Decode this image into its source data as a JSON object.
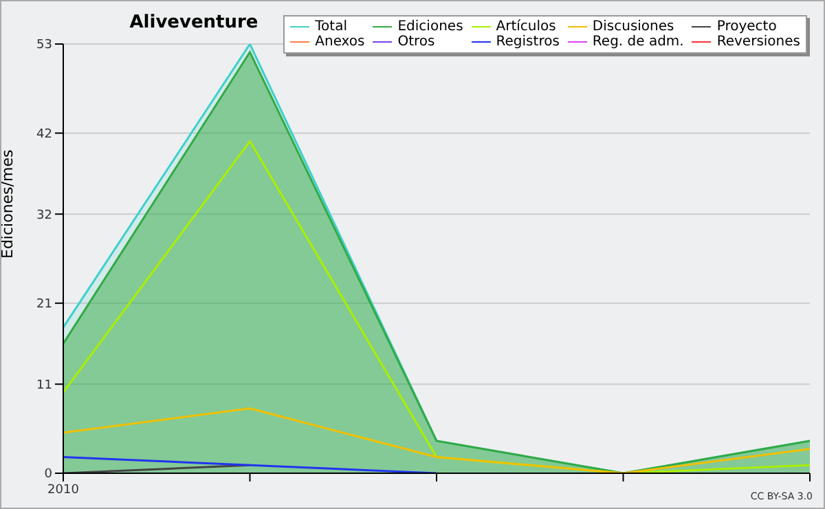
{
  "chart_data": {
    "type": "line",
    "title": "Aliveventure",
    "ylabel": "Ediciones/mes",
    "categories": [
      "2010",
      null,
      null,
      null,
      null
    ],
    "ylim": [
      0,
      53
    ],
    "yticks": [
      0,
      11,
      21,
      32,
      42,
      53
    ],
    "grid": "y",
    "legend": "top right",
    "annotations": [
      "CC BY-SA 3.0"
    ],
    "series": [
      {
        "name": "Total",
        "type": "area",
        "color": "#3fd0cc",
        "values": [
          18,
          53,
          4,
          0,
          4
        ]
      },
      {
        "name": "Ediciones",
        "type": "area",
        "color": "#33aa44",
        "values": [
          16,
          52,
          4,
          0,
          4
        ]
      },
      {
        "name": "Artículos",
        "color": "#aaee00",
        "values": [
          10,
          41,
          2,
          0,
          1
        ]
      },
      {
        "name": "Discusiones",
        "color": "#f0c000",
        "values": [
          5,
          8,
          2,
          0,
          3
        ]
      },
      {
        "name": "Proyecto",
        "color": "#444444",
        "values": [
          0,
          1,
          null,
          null,
          null
        ]
      },
      {
        "name": "Anexos",
        "color": "#ff7f40",
        "values": [
          null,
          null,
          null,
          null,
          null
        ]
      },
      {
        "name": "Otros",
        "color": "#8040e0",
        "values": [
          null,
          null,
          null,
          null,
          null
        ]
      },
      {
        "name": "Registros",
        "color": "#2233ee",
        "values": [
          2,
          1,
          0,
          null,
          null
        ]
      },
      {
        "name": "Reg. de adm.",
        "color": "#e040f0",
        "values": [
          null,
          null,
          null,
          null,
          null
        ]
      },
      {
        "name": "Reversiones",
        "color": "#ff3030",
        "values": [
          null,
          null,
          null,
          null,
          null
        ]
      }
    ]
  }
}
